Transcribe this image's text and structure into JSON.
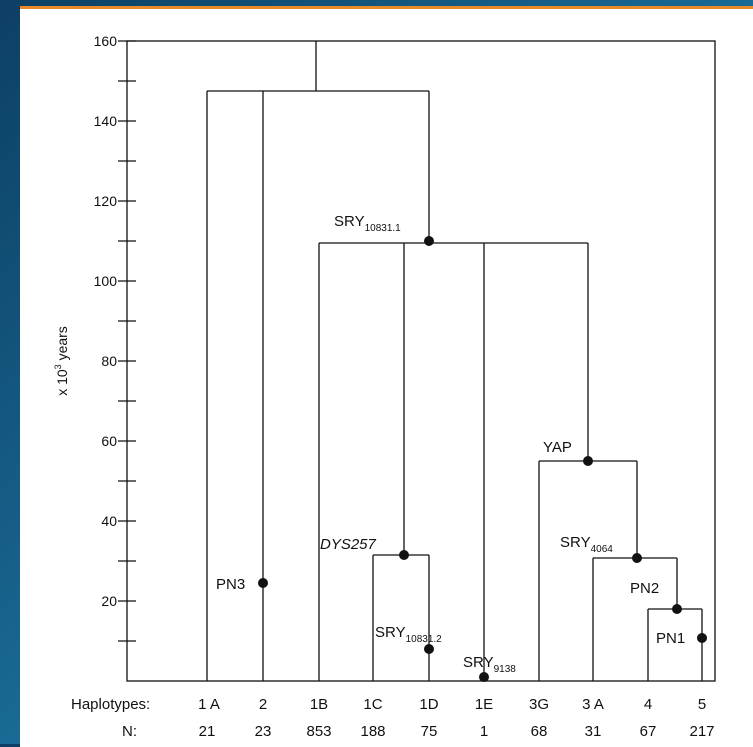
{
  "colors": {
    "accent_border": "#e8892a",
    "background": "#1a6e9a",
    "ink": "#111111"
  },
  "axis": {
    "label_base": "x 10",
    "label_sup": "3",
    "label_unit": " years",
    "ticks": [
      "160",
      "140",
      "120",
      "100",
      "80",
      "60",
      "40",
      "20"
    ]
  },
  "markers": {
    "pn3": "PN3",
    "srya_base": "SRY",
    "srya_sub": "10831.1",
    "dys257": "DYS257",
    "sryb_base": "SRY",
    "sryb_sub": "10831.2",
    "sryc_base": "SRY",
    "sryc_sub": "9138",
    "yap": "YAP",
    "sryd_base": "SRY",
    "sryd_sub": "4064",
    "pn2": "PN2",
    "pn1": "PN1"
  },
  "table": {
    "haplotypes_label": "Haplotypes:",
    "n_label": "N:",
    "haplotypes": [
      "1 A",
      "2",
      "1B",
      "1C",
      "1D",
      "1E",
      "3G",
      "3 A",
      "4",
      "5"
    ],
    "n": [
      "21",
      "23",
      "853",
      "188",
      "75",
      "1",
      "68",
      "31",
      "67",
      "217"
    ]
  }
}
